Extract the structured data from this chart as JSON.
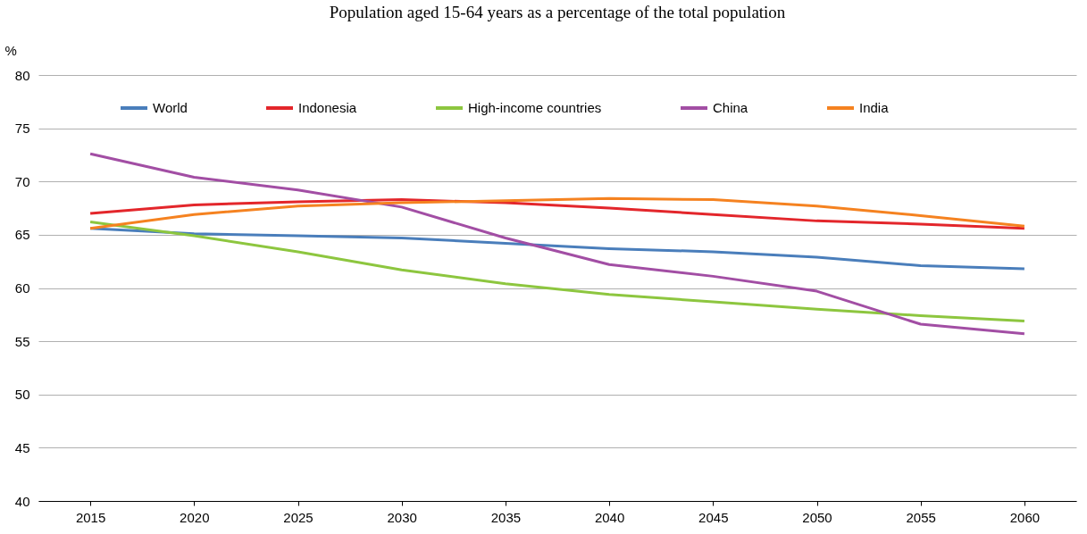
{
  "chart_data": {
    "type": "line",
    "title": "Population aged 15-64 years as a percentage of the total population",
    "ylabel": "%",
    "categories": [
      "2015",
      "2020",
      "2025",
      "2030",
      "2035",
      "2040",
      "2045",
      "2050",
      "2055",
      "2060"
    ],
    "series": [
      {
        "name": "World",
        "color": "#4a7ebb",
        "values": [
          65.6,
          65.1,
          64.9,
          64.7,
          64.2,
          63.7,
          63.4,
          62.9,
          62.1,
          61.8
        ]
      },
      {
        "name": "Indonesia",
        "color": "#e3262b",
        "values": [
          67.0,
          67.8,
          68.1,
          68.3,
          68.0,
          67.5,
          66.9,
          66.3,
          66.0,
          65.6
        ]
      },
      {
        "name": "High-income countries",
        "color": "#8dc63f",
        "values": [
          66.2,
          64.9,
          63.4,
          61.7,
          60.4,
          59.4,
          58.7,
          58.0,
          57.4,
          56.9
        ]
      },
      {
        "name": "China",
        "color": "#a24ea4",
        "values": [
          72.6,
          70.4,
          69.2,
          67.6,
          64.7,
          62.2,
          61.1,
          59.7,
          56.6,
          55.7
        ]
      },
      {
        "name": "India",
        "color": "#f58220",
        "values": [
          65.6,
          66.9,
          67.7,
          68.0,
          68.2,
          68.4,
          68.3,
          67.7,
          66.8,
          65.8
        ]
      }
    ],
    "ylim": [
      40,
      80
    ],
    "yticks": [
      40,
      45,
      50,
      55,
      60,
      65,
      70,
      75,
      80
    ],
    "grid": "y",
    "legend": "top",
    "marker": "none",
    "line_style": "solid"
  }
}
